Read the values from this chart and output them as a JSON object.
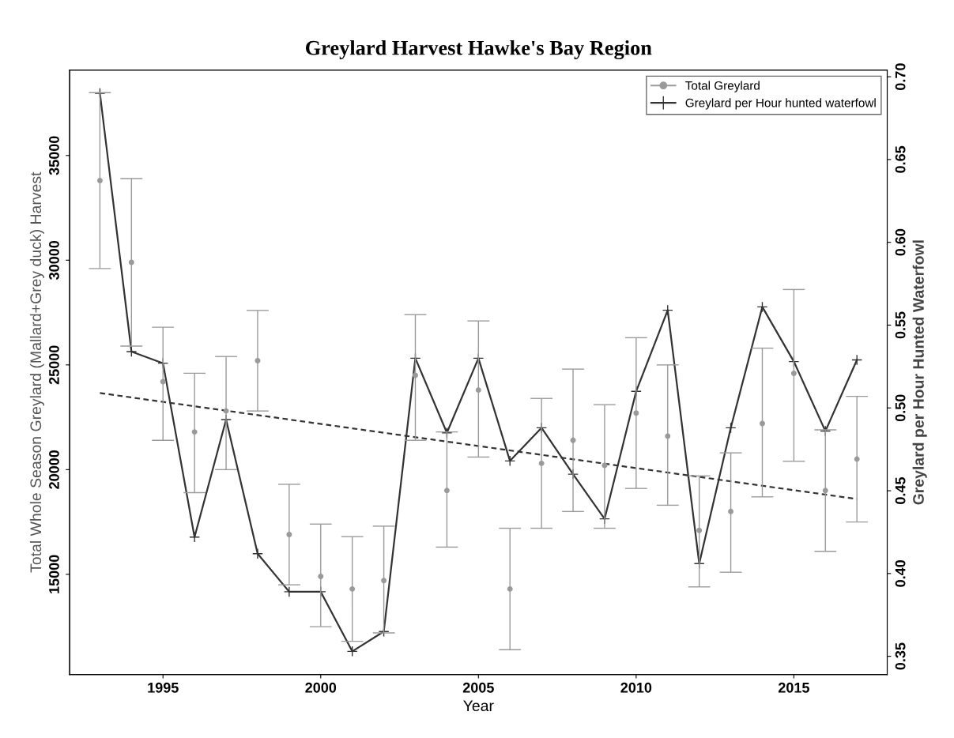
{
  "chart_data": {
    "type": "scatter",
    "title": "Greylard Harvest Hawke's Bay Region",
    "xlabel": "Year",
    "ylabel": "Total Whole Season Greylard (Mallard+Grey duck) Harvest",
    "y2label": "Greylard per Hour Hunted Waterfowl",
    "x": [
      1993,
      1994,
      1995,
      1996,
      1997,
      1998,
      1999,
      2000,
      2001,
      2002,
      2003,
      2004,
      2005,
      2006,
      2007,
      2008,
      2009,
      2010,
      2011,
      2012,
      2013,
      2014,
      2015,
      2016,
      2017
    ],
    "series": [
      {
        "name": "Total Greylard",
        "marker": "circle",
        "color": "#9a9a9a",
        "values": [
          33800,
          29900,
          24200,
          21800,
          22800,
          25200,
          16900,
          14900,
          14300,
          14700,
          24500,
          19000,
          23800,
          14300,
          20300,
          21400,
          20200,
          22700,
          21600,
          17100,
          18000,
          22200,
          24600,
          19000,
          20500
        ],
        "errors": [
          [
            29600,
            38000
          ],
          [
            25900,
            33900
          ],
          [
            21400,
            26800
          ],
          [
            18900,
            24600
          ],
          [
            20000,
            25400
          ],
          [
            22800,
            27600
          ],
          [
            14500,
            19300
          ],
          [
            12500,
            17400
          ],
          [
            11800,
            16800
          ],
          [
            12200,
            17300
          ],
          [
            21400,
            27400
          ],
          [
            16300,
            21800
          ],
          [
            20600,
            27100
          ],
          [
            11400,
            17200
          ],
          [
            17200,
            23400
          ],
          [
            18000,
            24800
          ],
          [
            17200,
            23100
          ],
          [
            19100,
            26300
          ],
          [
            18300,
            25000
          ],
          [
            14400,
            19700
          ],
          [
            15100,
            20800
          ],
          [
            18700,
            25800
          ],
          [
            20400,
            28600
          ],
          [
            16100,
            21900
          ],
          [
            17500,
            23500
          ]
        ]
      },
      {
        "name": "Greylard per Hour hunted waterfowl",
        "type": "line",
        "axis": "y2",
        "marker": "cross",
        "line_style": "solid",
        "color": "#333333",
        "values": [
          0.69,
          0.534,
          0.527,
          0.422,
          0.493,
          0.412,
          0.389,
          0.389,
          0.353,
          0.365,
          0.53,
          0.485,
          0.53,
          0.468,
          0.488,
          0.46,
          0.433,
          0.51,
          0.559,
          0.406,
          0.488,
          0.561,
          0.528,
          0.486,
          0.529
        ]
      },
      {
        "type": "line",
        "axis": "y2",
        "marker": "none",
        "line_style": "dashed",
        "color": "#333333",
        "x": [
          1993,
          2017
        ],
        "values": [
          0.509,
          0.445
        ]
      }
    ],
    "xlim": [
      1992.04,
      2017.96
    ],
    "xticks": [
      1995,
      2000,
      2005,
      2010,
      2015
    ],
    "ylim": [
      10215,
      39077
    ],
    "yticks": [
      15000,
      20000,
      25000,
      30000,
      35000
    ],
    "y2lim": [
      0.339,
      0.704
    ],
    "y2ticks": [
      0.35,
      {
        "value": 0.4,
        "label": "0.40"
      },
      0.45,
      {
        "value": 0.5,
        "label": "0.50"
      },
      0.55,
      {
        "value": 0.6,
        "label": "0.60"
      },
      0.65,
      {
        "value": 0.7,
        "label": "0.70"
      }
    ],
    "legend": "top right",
    "grid": false
  }
}
